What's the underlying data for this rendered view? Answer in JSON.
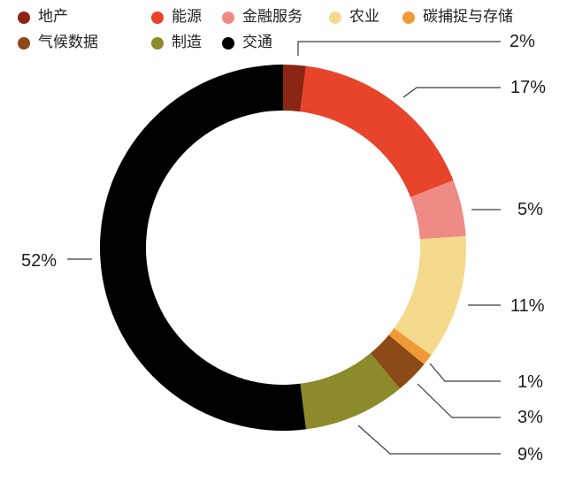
{
  "chart_data": {
    "type": "pie",
    "donut": true,
    "categories": [
      "地产",
      "能源",
      "金融服务",
      "农业",
      "碳捕捉与存储",
      "气候数据",
      "制造",
      "交通"
    ],
    "values": [
      2,
      17,
      5,
      11,
      1,
      3,
      9,
      52
    ],
    "data_labels": [
      "2%",
      "17%",
      "5%",
      "11%",
      "1%",
      "3%",
      "9%",
      "52%"
    ],
    "colors": [
      "#8B2614",
      "#E8442B",
      "#EF8B85",
      "#F5D98D",
      "#F09A37",
      "#8C4A17",
      "#8D8A2C",
      "#000000"
    ],
    "legend_position": "top-left"
  }
}
